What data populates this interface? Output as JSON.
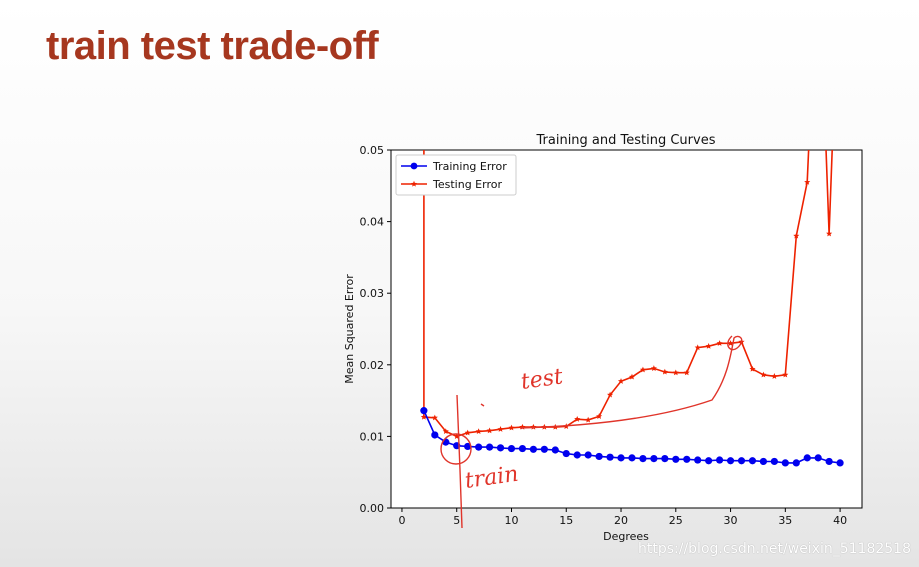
{
  "slide": {
    "title": "train test trade-off",
    "watermark": "https://blog.csdn.net/weixin_51182518"
  },
  "annotations": {
    "test": "test",
    "train": "train",
    "ink_color": "#e0342a"
  },
  "chart_data": {
    "type": "line",
    "title": "Training and Testing Curves",
    "xlabel": "Degrees",
    "ylabel": "Mean Squared Error",
    "xlim": [
      -1,
      42
    ],
    "ylim": [
      0,
      0.05
    ],
    "xticks": [
      0,
      5,
      10,
      15,
      20,
      25,
      30,
      35,
      40
    ],
    "yticks": [
      0.0,
      0.01,
      0.02,
      0.03,
      0.04,
      0.05
    ],
    "ytick_labels": [
      "0.00",
      "0.01",
      "0.02",
      "0.03",
      "0.04",
      "0.05"
    ],
    "grid": false,
    "legend_position": "upper-left",
    "series": [
      {
        "name": "Training Error",
        "color": "#0000ee",
        "marker": "circle",
        "x": [
          2,
          3,
          4,
          5,
          6,
          7,
          8,
          9,
          10,
          11,
          12,
          13,
          14,
          15,
          16,
          17,
          18,
          19,
          20,
          21,
          22,
          23,
          24,
          25,
          26,
          27,
          28,
          29,
          30,
          31,
          32,
          33,
          34,
          35,
          36,
          37,
          38,
          39,
          40
        ],
        "y": [
          0.0136,
          0.0102,
          0.0092,
          0.0087,
          0.0086,
          0.0085,
          0.0085,
          0.0084,
          0.0083,
          0.0083,
          0.0082,
          0.0082,
          0.0081,
          0.0076,
          0.0074,
          0.0074,
          0.0072,
          0.0071,
          0.007,
          0.007,
          0.0069,
          0.0069,
          0.0069,
          0.0068,
          0.0068,
          0.0067,
          0.0066,
          0.0067,
          0.0066,
          0.0066,
          0.0066,
          0.0065,
          0.0065,
          0.0063,
          0.0063,
          0.007,
          0.007,
          0.0065,
          0.0063
        ]
      },
      {
        "name": "Testing Error",
        "color": "#ee2200",
        "marker": "star",
        "x": [
          2,
          3,
          4,
          5,
          6,
          7,
          8,
          9,
          10,
          11,
          12,
          13,
          14,
          15,
          16,
          17,
          18,
          19,
          20,
          21,
          22,
          23,
          24,
          25,
          26,
          27,
          28,
          29,
          30,
          31,
          32,
          33,
          34,
          35,
          36,
          37,
          38,
          39,
          40
        ],
        "y": [
          0.0127,
          0.0126,
          0.0107,
          0.01,
          0.0105,
          0.0107,
          0.0108,
          0.011,
          0.0112,
          0.0113,
          0.0113,
          0.0113,
          0.0113,
          0.0114,
          0.0124,
          0.0123,
          0.0128,
          0.0158,
          0.0177,
          0.0183,
          0.0193,
          0.0195,
          0.019,
          0.0189,
          0.0189,
          0.0224,
          0.0226,
          0.023,
          0.023,
          0.0232,
          0.0194,
          0.0186,
          0.0184,
          0.0186,
          0.038,
          0.0455,
          0.08,
          0.0383,
          0.08
        ]
      }
    ]
  }
}
